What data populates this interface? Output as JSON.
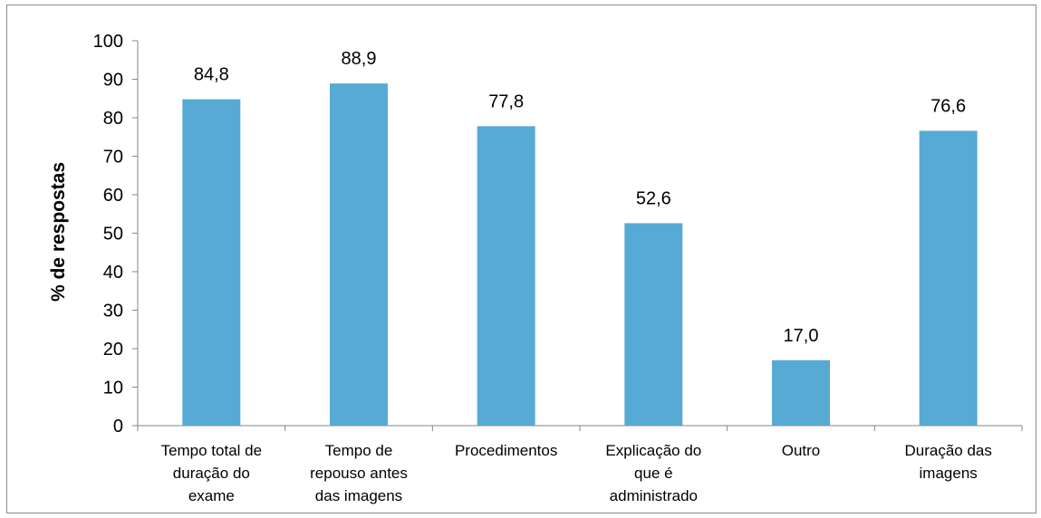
{
  "chart_data": {
    "type": "bar",
    "categories": [
      [
        "Tempo total de",
        "duração do",
        "exame"
      ],
      [
        "Tempo de",
        "repouso antes",
        "das imagens"
      ],
      [
        "Procedimentos"
      ],
      [
        "Explicação do",
        "que é",
        "administrado"
      ],
      [
        "Outro"
      ],
      [
        "Duração das",
        "imagens"
      ]
    ],
    "values": [
      84.8,
      88.9,
      77.8,
      52.6,
      17.0,
      76.6
    ],
    "value_labels": [
      "84,8",
      "88,9",
      "77,8",
      "52,6",
      "17,0",
      "76,6"
    ],
    "ylabel": "% de respostas",
    "ylim": [
      0,
      100
    ],
    "yticks": [
      0,
      10,
      20,
      30,
      40,
      50,
      60,
      70,
      80,
      90,
      100
    ],
    "grid": false,
    "bar_color": "#56aad3",
    "axis_color": "#868686"
  }
}
